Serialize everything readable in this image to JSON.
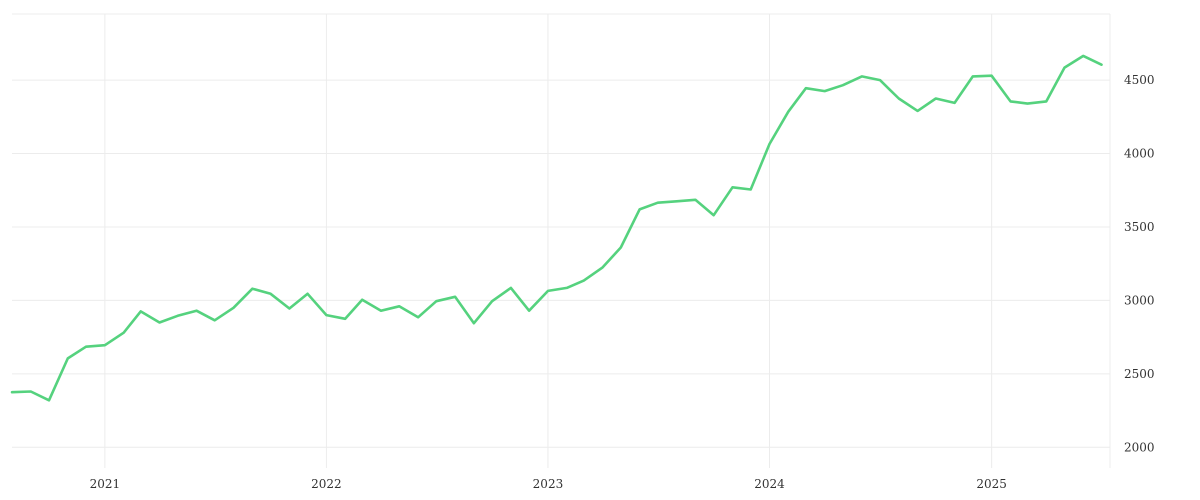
{
  "chart_data": {
    "type": "line",
    "title": "",
    "xlabel": "",
    "ylabel": "",
    "grid": true,
    "y_axis_position": "right",
    "ylim": [
      1900,
      4950
    ],
    "xlim": [
      "2020-08-01",
      "2025-07-15"
    ],
    "yticks": [
      2000,
      2500,
      3000,
      3500,
      4000,
      4500
    ],
    "yticks_labels": [
      "2000",
      "2500",
      "3000",
      "3500",
      "4000",
      "4500"
    ],
    "xticks": [
      "2021-01-01",
      "2022-01-01",
      "2023-01-01",
      "2024-01-01",
      "2025-01-01"
    ],
    "xticks_labels": [
      "2021",
      "2022",
      "2023",
      "2024",
      "2025"
    ],
    "series": [
      {
        "color": "#55d27e",
        "x": [
          "2020-08",
          "2020-09",
          "2020-10",
          "2020-11",
          "2020-12",
          "2021-01",
          "2021-02",
          "2021-03",
          "2021-04",
          "2021-05",
          "2021-06",
          "2021-07",
          "2021-08",
          "2021-09",
          "2021-10",
          "2021-11",
          "2021-12",
          "2022-01",
          "2022-02",
          "2022-03",
          "2022-04",
          "2022-05",
          "2022-06",
          "2022-07",
          "2022-08",
          "2022-09",
          "2022-10",
          "2022-11",
          "2022-12",
          "2023-01",
          "2023-02",
          "2023-03",
          "2023-04",
          "2023-05",
          "2023-06",
          "2023-07",
          "2023-08",
          "2023-09",
          "2023-10",
          "2023-11",
          "2023-12",
          "2024-01",
          "2024-02",
          "2024-03",
          "2024-04",
          "2024-05",
          "2024-06",
          "2024-07",
          "2024-08",
          "2024-09",
          "2024-10",
          "2024-11",
          "2024-12",
          "2025-01",
          "2025-02",
          "2025-03",
          "2025-04",
          "2025-05",
          "2025-06",
          "2025-07"
        ],
        "values": [
          2375,
          2380,
          2320,
          2605,
          2685,
          2695,
          2780,
          2925,
          2850,
          2895,
          2930,
          2865,
          2950,
          3080,
          3045,
          2945,
          3045,
          2900,
          2875,
          3005,
          2930,
          2960,
          2885,
          2995,
          3025,
          2845,
          2995,
          3085,
          2930,
          3065,
          3085,
          3135,
          3225,
          3360,
          3620,
          3665,
          3675,
          3685,
          3580,
          3770,
          3755,
          4065,
          4285,
          4445,
          4425,
          4465,
          4525,
          4500,
          4375,
          4290,
          4375,
          4345,
          4525,
          4530,
          4355,
          4340,
          4355,
          4585,
          4665,
          4605
        ]
      }
    ]
  }
}
